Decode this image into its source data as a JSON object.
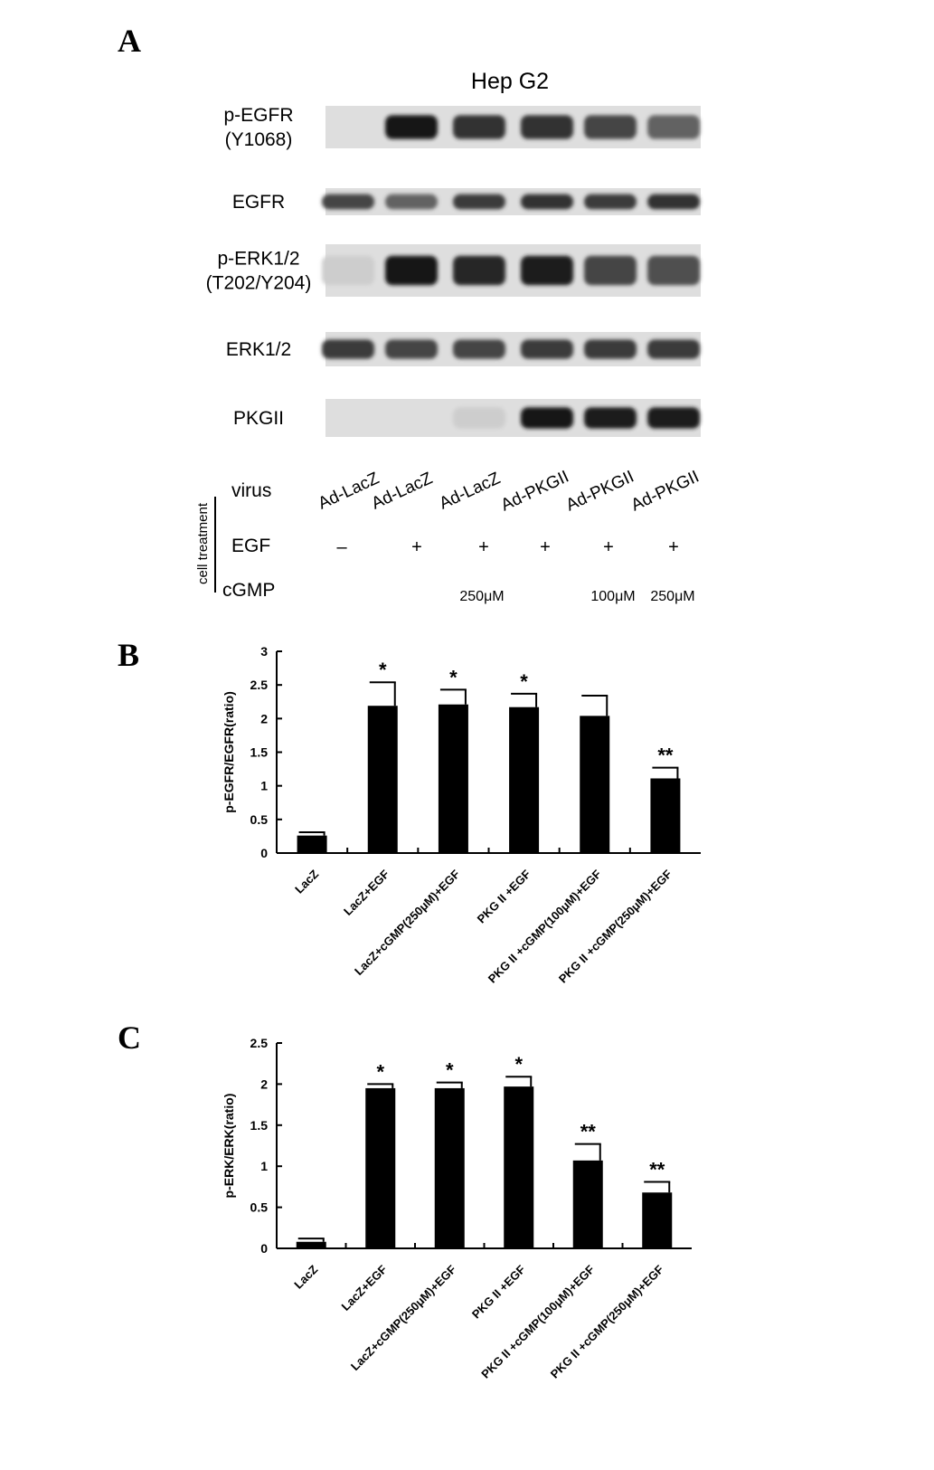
{
  "panels": {
    "a": "A",
    "b": "B",
    "c": "C"
  },
  "blot": {
    "title": "Hep G2",
    "rows": [
      {
        "label_lines": [
          "p-EGFR",
          "(Y1068)"
        ],
        "intensities": [
          0.0,
          1.0,
          0.85,
          0.85,
          0.75,
          0.6
        ]
      },
      {
        "label_lines": [
          "EGFR"
        ],
        "intensities": [
          0.75,
          0.6,
          0.8,
          0.85,
          0.8,
          0.85
        ]
      },
      {
        "label_lines": [
          "p-ERK1/2",
          "(T202/Y204)"
        ],
        "intensities": [
          0.05,
          1.0,
          0.9,
          0.95,
          0.75,
          0.7
        ]
      },
      {
        "label_lines": [
          "ERK1/2"
        ],
        "intensities": [
          0.8,
          0.75,
          0.75,
          0.8,
          0.8,
          0.8
        ]
      },
      {
        "label_lines": [
          "PKGII"
        ],
        "intensities": [
          0.0,
          0.0,
          0.05,
          1.0,
          0.95,
          0.95
        ]
      }
    ],
    "treatment_label": "cell treatment",
    "virus_label": "virus",
    "egf_label": "EGF",
    "cgmp_label": "cGMP",
    "virus": [
      "Ad-LacZ",
      "Ad-LacZ",
      "Ad-LacZ",
      "Ad-PKGII",
      "Ad-PKGII",
      "Ad-PKGII"
    ],
    "egf": [
      "–",
      "+",
      "+",
      "+",
      "+",
      "+"
    ],
    "cgmp": [
      "",
      "",
      "250μM",
      "",
      "100μM",
      "250μM"
    ]
  },
  "chart_data": [
    {
      "type": "bar",
      "ylabel": "p-EGFR/EGFR(ratio)",
      "ylim": [
        0,
        3
      ],
      "yticks": [
        0,
        0.5,
        1,
        1.5,
        2,
        2.5,
        3
      ],
      "categories": [
        "LacZ",
        "LacZ+EGF",
        "LacZ+cGMP(250μM)+EGF",
        "PKG II +EGF",
        "PKG II +cGMP(100μM)+EGF",
        "PKG II +cGMP(250μM)+EGF"
      ],
      "values": [
        0.26,
        2.19,
        2.21,
        2.17,
        2.04,
        1.11
      ],
      "errors": [
        0.05,
        0.35,
        0.22,
        0.2,
        0.3,
        0.16
      ],
      "annotations": [
        "",
        "*",
        "*",
        "*",
        "",
        "**"
      ]
    },
    {
      "type": "bar",
      "ylabel": "p-ERK/ERK(ratio)",
      "ylim": [
        0,
        2.5
      ],
      "yticks": [
        0,
        0.5,
        1,
        1.5,
        2,
        2.5
      ],
      "categories": [
        "LacZ",
        "LacZ+EGF",
        "LacZ+cGMP(250μM)+EGF",
        "PKG II +EGF",
        "PKG II +cGMP(100μM)+EGF",
        "PKG II +cGMP(250μM)+EGF"
      ],
      "values": [
        0.08,
        1.95,
        1.95,
        1.97,
        1.07,
        0.68
      ],
      "errors": [
        0.04,
        0.05,
        0.07,
        0.12,
        0.2,
        0.13
      ],
      "annotations": [
        "",
        "*",
        "*",
        "*",
        "**",
        "**"
      ]
    }
  ]
}
